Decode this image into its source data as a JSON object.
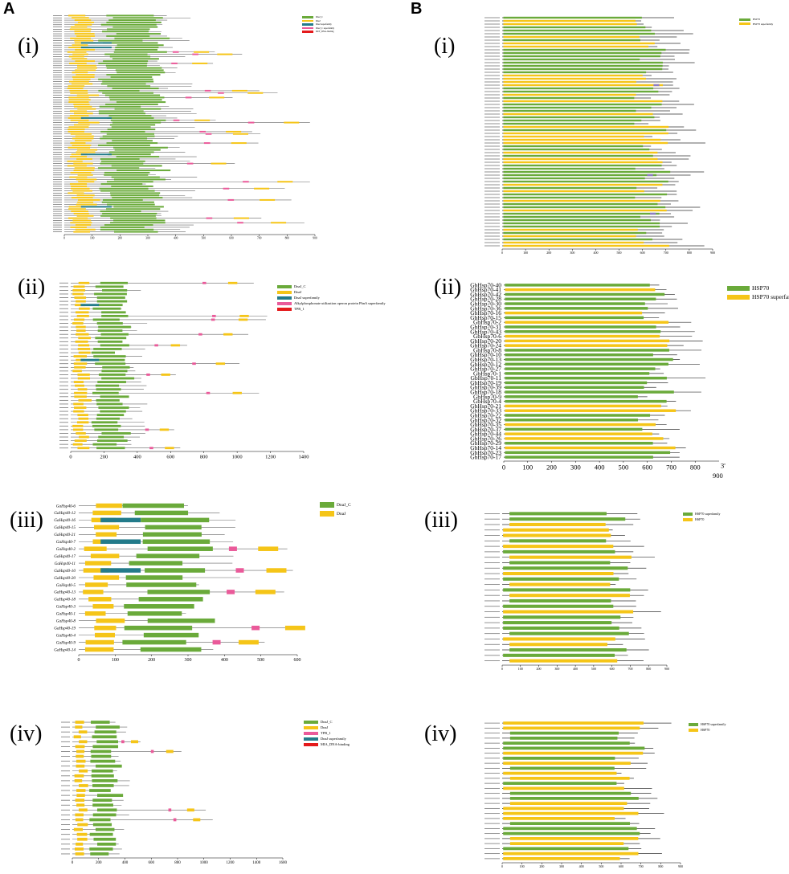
{
  "figure": {
    "panel_letters": [
      "A",
      "B"
    ],
    "sub_labels": [
      "(i)",
      "(ii)",
      "(iii)",
      "(iv)"
    ]
  },
  "colors": {
    "dnaj_c": "#6aaa3a",
    "dnaj": "#f5c518",
    "dnaj_superfamily": "#237b8a",
    "dnaj_alt": "#ea5a9a",
    "red": "#e41a1c",
    "hsp70": "#6aaa3a",
    "hsp70_superfamily": "#f5c518",
    "line": "#666666",
    "purple": "#8e7cc3",
    "blue": "#4a6fd0"
  },
  "panels": {
    "A_i": {
      "legend": [
        "DnaJ_C",
        "DnaJ",
        "DnaJ superfamily",
        "DnaJ_C superfamily",
        "DUF_DNA-binding"
      ],
      "legend_colors": [
        "#6aaa3a",
        "#f5c518",
        "#237b8a",
        "#ea5a9a",
        "#e41a1c"
      ],
      "ticks": [
        "0",
        "100",
        "200",
        "300",
        "400",
        "500",
        "600",
        "700",
        "800",
        "900"
      ]
    },
    "A_ii": {
      "legend": [
        "DnaJ_C",
        "DnaJ",
        "DnaJ superfamily",
        "Alkylphosphonate utilization operon protein PhnA superfamily",
        "TPR_1"
      ],
      "legend_colors": [
        "#6aaa3a",
        "#f5c518",
        "#237b8a",
        "#ea5a9a",
        "#e41a1c"
      ],
      "ticks": [
        "0",
        "200",
        "400",
        "600",
        "800",
        "1000",
        "1200",
        "1400"
      ]
    },
    "A_iii": {
      "legend": [
        "DnaJ_C",
        "DnaJ"
      ],
      "legend_colors": [
        "#6aaa3a",
        "#f5c518"
      ],
      "ticks": [
        "0",
        "100",
        "200",
        "300",
        "400",
        "500",
        "600"
      ],
      "rows": [
        "GaHsp40-6",
        "GaHsp40-12",
        "GaHsp40-16",
        "GaHsp40-15",
        "GaHsp40-21",
        "GaHsp40-7",
        "GaHsp40-2",
        "GaHsp40-17",
        "GaHsp40-11",
        "GaHsp40-10",
        "GaHsp40-20",
        "GaHsp40-5",
        "GaHsp40-13",
        "GaHsp40-18",
        "GaHsp40-3",
        "GaHsp40-1",
        "GaHsp40-8",
        "GaHsp40-19",
        "GaHsp40-4",
        "GaHsp40-9",
        "GaHsp40-14"
      ]
    },
    "A_iv": {
      "legend": [
        "DnaJ_C",
        "DnaJ",
        "TPR_1",
        "DnaJ superfamily",
        "MIA_DNA-binding"
      ],
      "legend_colors": [
        "#6aaa3a",
        "#f5c518",
        "#ea5a9a",
        "#237b8a",
        "#e41a1c"
      ],
      "ticks": [
        "0",
        "200",
        "400",
        "600",
        "800",
        "1000",
        "1200",
        "1400",
        "1600"
      ]
    },
    "B_i": {
      "legend": [
        "HSP70",
        "HSP70 superfamily"
      ],
      "legend_colors": [
        "#6aaa3a",
        "#f5c518"
      ],
      "ticks": [
        "0",
        "100",
        "200",
        "300",
        "400",
        "500",
        "600",
        "700",
        "800",
        "900"
      ]
    },
    "B_ii": {
      "legend": [
        "HSP70",
        "HSP70 superfamily"
      ],
      "legend_colors": [
        "#6aaa3a",
        "#f5c518"
      ],
      "ticks": [
        "0",
        "100",
        "200",
        "300",
        "400",
        "500",
        "600",
        "700",
        "800"
      ],
      "end_label": "900",
      "end_mark": "3'",
      "rows": [
        "GbHsp70-40",
        "GbHsp70-41",
        "GbHsp70-42",
        "GbHsp70-28",
        "GbHsp70-30",
        "GbHsp70-36",
        "GbHsp70-16",
        "GbHsp70-15",
        "GbHsp70-2",
        "GbHsp70-31",
        "GbHsp70-43",
        "GbHsp70-6",
        "GbHsp70-20",
        "GbHsp70-24",
        "GbHsp70-8",
        "GbHsp70-10",
        "GbHsp70-13",
        "GbHsp70-12",
        "GbHsp70-27",
        "GbHsp70-1",
        "GbHsp70-11",
        "GbHsp70-19",
        "GbHsp70-39",
        "GbHsp70-18",
        "GbHsp70-9",
        "GbHsp70-4",
        "GbHsp70-21",
        "GbHsp70-33",
        "GbHsp70-22",
        "GbHsp70-32",
        "GbHsp70-35",
        "GbHsp70-37",
        "GbHsp70-44",
        "GbHsp70-26",
        "GbHsp70-29",
        "GbHsp70-14",
        "GbHsp70-23",
        "GbHsp70-17"
      ]
    },
    "B_iii": {
      "legend": [
        "HSP70 superfamily",
        "HSP70"
      ],
      "legend_colors": [
        "#6aaa3a",
        "#f5c518"
      ],
      "ticks": [
        "0",
        "100",
        "200",
        "300",
        "400",
        "500",
        "600",
        "700",
        "800",
        "900"
      ]
    },
    "B_iv": {
      "legend": [
        "HSP70 superfamily",
        "HSP70"
      ],
      "legend_colors": [
        "#6aaa3a",
        "#f5c518"
      ],
      "ticks": [
        "0",
        "100",
        "200",
        "300",
        "400",
        "500",
        "600",
        "700",
        "800",
        "900"
      ]
    }
  }
}
